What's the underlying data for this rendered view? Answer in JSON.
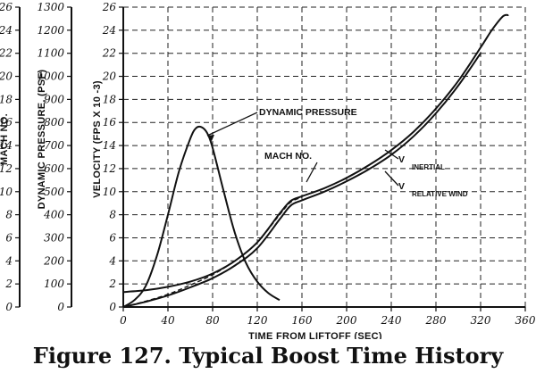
{
  "caption": "Figure 127. Typical Boost Time History",
  "chart_data": {
    "type": "line",
    "title": "",
    "xlabel": "TIME FROM LIFTOFF (SEC)",
    "xlim": [
      0,
      360
    ],
    "x_ticks": [
      0,
      40,
      80,
      120,
      160,
      200,
      240,
      280,
      320,
      360
    ],
    "y_axes": [
      {
        "label": "MACH NO.",
        "range": [
          0,
          26
        ],
        "ticks": [
          0,
          2,
          4,
          6,
          8,
          10,
          12,
          14,
          16,
          18,
          20,
          22,
          24,
          26
        ]
      },
      {
        "label": "DYNAMIC PRESSURE, (PSF)",
        "range": [
          0,
          1300
        ],
        "ticks": [
          0,
          100,
          200,
          300,
          400,
          500,
          600,
          700,
          800,
          900,
          1000,
          1100,
          1200,
          1300
        ]
      },
      {
        "label": "VELOCITY (FPS X 10 -3)",
        "range": [
          0,
          26
        ],
        "ticks": [
          0,
          2,
          4,
          6,
          8,
          10,
          12,
          14,
          16,
          18,
          20,
          22,
          24,
          26
        ]
      }
    ],
    "grid": true,
    "series": [
      {
        "name": "DYNAMIC PRESSURE",
        "axis": "DYNAMIC PRESSURE, (PSF)",
        "x": [
          0,
          10,
          20,
          30,
          40,
          50,
          60,
          65,
          70,
          75,
          80,
          90,
          100,
          110,
          120,
          130,
          140
        ],
        "y": [
          0,
          30,
          90,
          220,
          400,
          590,
          730,
          775,
          780,
          755,
          690,
          500,
          320,
          190,
          110,
          60,
          30
        ]
      },
      {
        "name": "V INERTIAL",
        "axis": "VELOCITY (FPS X 10 -3)",
        "x": [
          0,
          20,
          40,
          60,
          80,
          100,
          120,
          140,
          150,
          160,
          180,
          200,
          220,
          240,
          260,
          280,
          300,
          320,
          330,
          340,
          345
        ],
        "y": [
          1.3,
          1.45,
          1.75,
          2.2,
          2.9,
          4.0,
          5.6,
          8.1,
          9.2,
          9.6,
          10.3,
          11.2,
          12.3,
          13.6,
          15.2,
          17.2,
          19.6,
          22.5,
          24.0,
          25.2,
          25.3
        ]
      },
      {
        "name": "V RELATIVE WIND",
        "axis": "VELOCITY (FPS X 10 -3)",
        "x": [
          0,
          20,
          40,
          60,
          80,
          100,
          120,
          140,
          150,
          160,
          180,
          200,
          220,
          240,
          260,
          280,
          300,
          320
        ],
        "y": [
          0,
          0.45,
          1.0,
          1.7,
          2.5,
          3.6,
          5.1,
          7.6,
          8.8,
          9.25,
          10.0,
          10.9,
          11.95,
          13.2,
          14.8,
          16.8,
          19.2,
          22.0
        ]
      },
      {
        "name": "MACH NO.",
        "axis": "MACH NO.",
        "x": [
          0,
          20,
          40,
          60,
          80,
          100,
          120,
          140,
          150,
          160
        ],
        "y": [
          0,
          0.5,
          1.1,
          1.9,
          2.8,
          4.0,
          5.6,
          8.0,
          9.1,
          9.5
        ]
      }
    ],
    "annotations": {
      "dynamic_pressure": "DYNAMIC PRESSURE",
      "mach": "MACH NO.",
      "v_inertial_main": "V",
      "v_inertial_sub": "INERTIAL",
      "v_relative_main": "V",
      "v_relative_sub": "RELATIVE WIND"
    }
  }
}
